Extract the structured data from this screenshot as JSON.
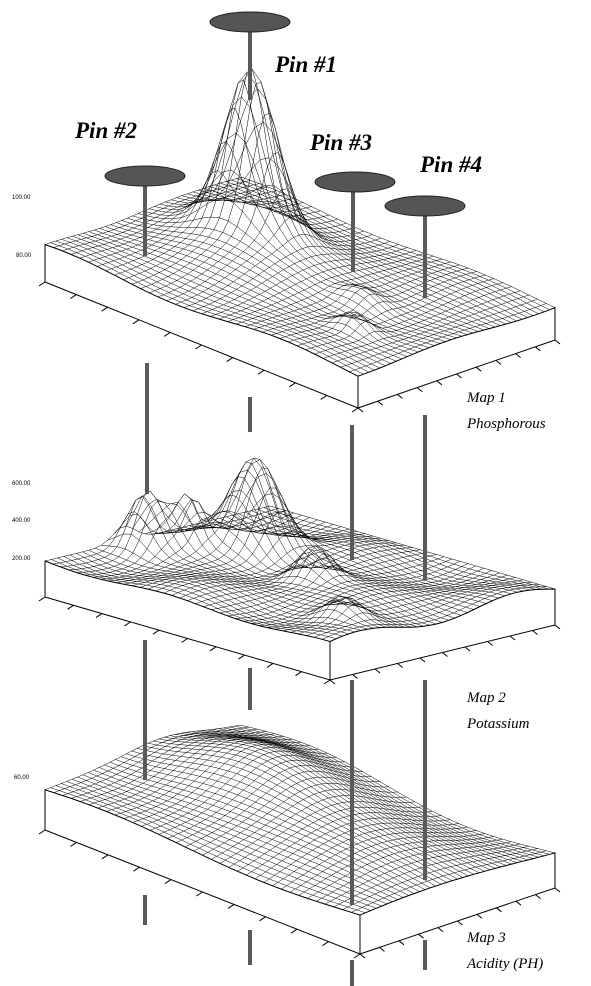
{
  "pins": [
    {
      "label": "Pin #1"
    },
    {
      "label": "Pin #2"
    },
    {
      "label": "Pin #3"
    },
    {
      "label": "Pin #4"
    }
  ],
  "maps": [
    {
      "title": "Map 1",
      "name": "Phosphorous",
      "z_ticks": [
        "100.00",
        "80.00"
      ]
    },
    {
      "title": "Map 2",
      "name": "Potassium",
      "z_ticks": [
        "600.00",
        "400.00",
        "200.00"
      ]
    },
    {
      "title": "Map 3",
      "name": "Acidity (PH)",
      "z_ticks": [
        "60.00"
      ]
    }
  ]
}
